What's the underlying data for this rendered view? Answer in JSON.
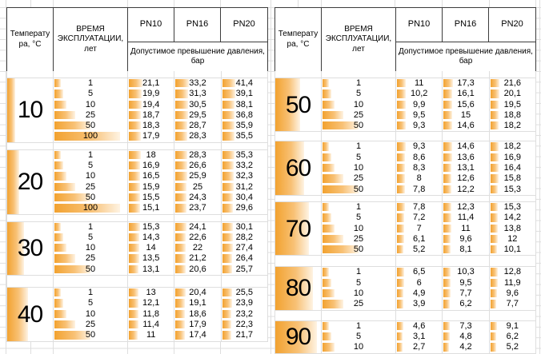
{
  "header": {
    "temperature_label": "Температура, °С",
    "time_label": "ВРЕМЯ ЭКСПЛУАТАЦИИ, лет",
    "pn_labels": [
      "PN10",
      "PN16",
      "PN20"
    ],
    "pn_sublabel": "Допустимое превышение давления, бар"
  },
  "colors": {
    "bar-start": "#F2A230",
    "bar-mid": "#F8C175",
    "bar-end": "#FEF3E3",
    "grid": "#DEDEDE",
    "border": "#3C3C3C"
  },
  "tables": [
    {
      "blocks": [
        {
          "temp": "10",
          "rows": [
            {
              "years": "1",
              "pn10": "21,1",
              "pn16": "33,2",
              "pn20": "41,4"
            },
            {
              "years": "5",
              "pn10": "19,9",
              "pn16": "31,3",
              "pn20": "39,1"
            },
            {
              "years": "10",
              "pn10": "19,4",
              "pn16": "30,5",
              "pn20": "38,1"
            },
            {
              "years": "25",
              "pn10": "18,7",
              "pn16": "29,5",
              "pn20": "36,8"
            },
            {
              "years": "50",
              "pn10": "18,3",
              "pn16": "28,7",
              "pn20": "35,9"
            },
            {
              "years": "100",
              "pn10": "17,9",
              "pn16": "28,3",
              "pn20": "35,5"
            }
          ]
        },
        {
          "temp": "20",
          "rows": [
            {
              "years": "1",
              "pn10": "18",
              "pn16": "28,3",
              "pn20": "35,3"
            },
            {
              "years": "5",
              "pn10": "16,9",
              "pn16": "26,6",
              "pn20": "33,2"
            },
            {
              "years": "10",
              "pn10": "16,5",
              "pn16": "25,9",
              "pn20": "32,3"
            },
            {
              "years": "25",
              "pn10": "15,9",
              "pn16": "25",
              "pn20": "31,2"
            },
            {
              "years": "50",
              "pn10": "15,5",
              "pn16": "24,3",
              "pn20": "30,4"
            },
            {
              "years": "100",
              "pn10": "15,1",
              "pn16": "23,7",
              "pn20": "29,6"
            }
          ]
        },
        {
          "temp": "30",
          "rows": [
            {
              "years": "1",
              "pn10": "15,3",
              "pn16": "24,1",
              "pn20": "30,1"
            },
            {
              "years": "5",
              "pn10": "14,3",
              "pn16": "22,6",
              "pn20": "28,2"
            },
            {
              "years": "10",
              "pn10": "14",
              "pn16": "22",
              "pn20": "27,4"
            },
            {
              "years": "25",
              "pn10": "13,5",
              "pn16": "21,2",
              "pn20": "26,4"
            },
            {
              "years": "50",
              "pn10": "13,1",
              "pn16": "20,6",
              "pn20": "25,7"
            }
          ]
        },
        {
          "temp": "40",
          "rows": [
            {
              "years": "1",
              "pn10": "13",
              "pn16": "20,4",
              "pn20": "25,5"
            },
            {
              "years": "5",
              "pn10": "12,1",
              "pn16": "19,1",
              "pn20": "23,9"
            },
            {
              "years": "10",
              "pn10": "11,8",
              "pn16": "18,6",
              "pn20": "23,2"
            },
            {
              "years": "25",
              "pn10": "11,4",
              "pn16": "17,9",
              "pn20": "22,3"
            },
            {
              "years": "50",
              "pn10": "11",
              "pn16": "17,4",
              "pn20": "21,7"
            }
          ]
        }
      ]
    },
    {
      "blocks": [
        {
          "temp": "50",
          "rows": [
            {
              "years": "1",
              "pn10": "11",
              "pn16": "17,3",
              "pn20": "21,6"
            },
            {
              "years": "5",
              "pn10": "10,2",
              "pn16": "16,1",
              "pn20": "20,1"
            },
            {
              "years": "10",
              "pn10": "9,9",
              "pn16": "15,6",
              "pn20": "19,5"
            },
            {
              "years": "25",
              "pn10": "9,5",
              "pn16": "15",
              "pn20": "18,8"
            },
            {
              "years": "50",
              "pn10": "9,3",
              "pn16": "14,6",
              "pn20": "18,2"
            }
          ]
        },
        {
          "temp": "60",
          "rows": [
            {
              "years": "1",
              "pn10": "9,3",
              "pn16": "14,6",
              "pn20": "18,2"
            },
            {
              "years": "5",
              "pn10": "8,6",
              "pn16": "13,6",
              "pn20": "16,9"
            },
            {
              "years": "10",
              "pn10": "8,3",
              "pn16": "13,1",
              "pn20": "16,4"
            },
            {
              "years": "25",
              "pn10": "8",
              "pn16": "12,6",
              "pn20": "15,8"
            },
            {
              "years": "50",
              "pn10": "7,8",
              "pn16": "12,2",
              "pn20": "15,3"
            }
          ]
        },
        {
          "temp": "70",
          "rows": [
            {
              "years": "1",
              "pn10": "7,8",
              "pn16": "12,3",
              "pn20": "15,3"
            },
            {
              "years": "5",
              "pn10": "7,2",
              "pn16": "11,4",
              "pn20": "14,2"
            },
            {
              "years": "10",
              "pn10": "7",
              "pn16": "11",
              "pn20": "13,8"
            },
            {
              "years": "25",
              "pn10": "6,1",
              "pn16": "9,6",
              "pn20": "12"
            },
            {
              "years": "50",
              "pn10": "5,2",
              "pn16": "8,1",
              "pn20": "10,1"
            }
          ]
        },
        {
          "temp": "80",
          "rows": [
            {
              "years": "1",
              "pn10": "6,5",
              "pn16": "10,3",
              "pn20": "12,8"
            },
            {
              "years": "5",
              "pn10": "6",
              "pn16": "9,5",
              "pn20": "11,9"
            },
            {
              "years": "10",
              "pn10": "4,9",
              "pn16": "7,7",
              "pn20": "9,6"
            },
            {
              "years": "25",
              "pn10": "3,9",
              "pn16": "6,2",
              "pn20": "7,7"
            }
          ]
        },
        {
          "temp": "90",
          "rows": [
            {
              "years": "1",
              "pn10": "4,6",
              "pn16": "7,3",
              "pn20": "9,1"
            },
            {
              "years": "5",
              "pn10": "3,1",
              "pn16": "4,8",
              "pn20": "6,2"
            },
            {
              "years": "10",
              "pn10": "2,7",
              "pn16": "4,2",
              "pn20": "5,2"
            }
          ]
        }
      ]
    }
  ]
}
